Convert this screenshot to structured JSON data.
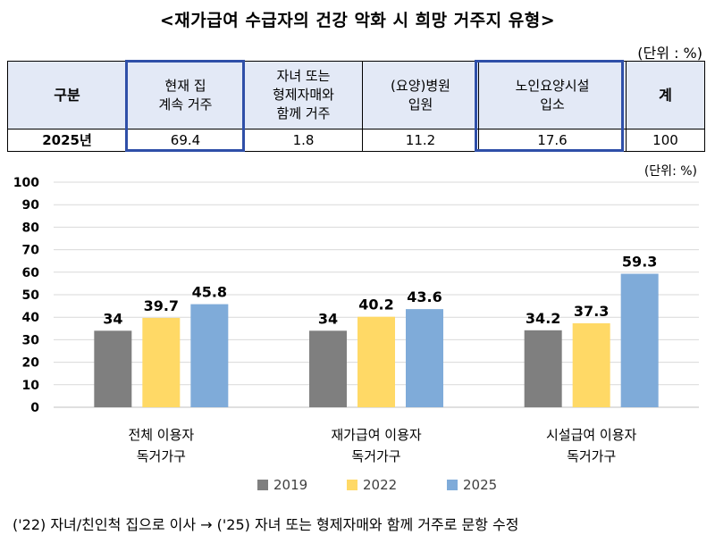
{
  "title": "<재가급여 수급자의 건강 악화 시 희망 거주지 유형>",
  "table": {
    "unit": "(단위 : %)",
    "headers": [
      "구분",
      "현재 집\n계속 거주",
      "자녀 또는\n형제자매와\n함께 거주",
      "(요양)병원\n입원",
      "노인요양시설\n입소",
      "계"
    ],
    "row": {
      "label": "2025년",
      "values": [
        "69.4",
        "1.8",
        "11.2",
        "17.6",
        "100"
      ]
    },
    "highlight_color": "#2f4fa8",
    "header_bg": "#e3e9f6"
  },
  "chart_data": {
    "type": "bar",
    "unit": "(단위: %)",
    "categories": [
      "전체 이용자\n독거가구",
      "재가급여 이용자\n독거가구",
      "시설급여 이용자\n독거가구"
    ],
    "series": [
      {
        "name": "2019",
        "color": "#7f7f7f",
        "values": [
          34,
          34,
          34.2
        ],
        "labels": [
          "34",
          "34",
          "34.2"
        ]
      },
      {
        "name": "2022",
        "color": "#ffd966",
        "values": [
          39.7,
          40.2,
          37.3
        ],
        "labels": [
          "39.7",
          "40.2",
          "37.3"
        ]
      },
      {
        "name": "2025",
        "color": "#7fabd9",
        "values": [
          45.8,
          43.6,
          59.3
        ],
        "labels": [
          "45.8",
          "43.6",
          "59.3"
        ]
      }
    ],
    "ylim": [
      0,
      100
    ],
    "yticks": [
      0,
      10,
      20,
      30,
      40,
      50,
      60,
      70,
      80,
      90,
      100
    ],
    "grid": true,
    "legend": "bottom"
  },
  "note": "('22) 자녀/친인척 집으로 이사 → ('25) 자녀 또는 형제자매와 함께 거주로 문항 수정"
}
